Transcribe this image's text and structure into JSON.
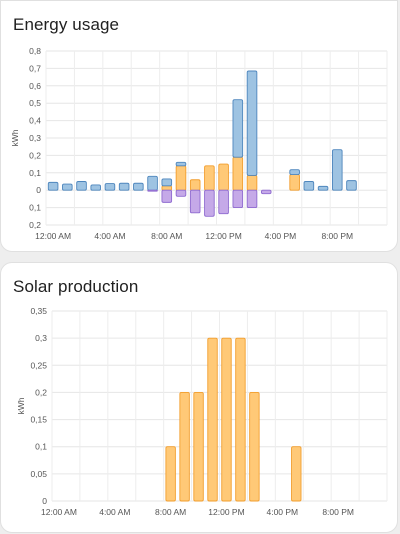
{
  "chart_data": [
    {
      "type": "bar",
      "title": "Energy usage",
      "ylabel": "kWh",
      "stacked": true,
      "grid": true,
      "ylim": [
        -0.2,
        0.8
      ],
      "yticks": [
        -0.2,
        -0.1,
        0,
        0.1,
        0.2,
        0.3,
        0.4,
        0.5,
        0.6,
        0.7,
        0.8
      ],
      "ytick_labels": [
        "0,2",
        "0,1",
        "0",
        "0,1",
        "0,2",
        "0,3",
        "0,4",
        "0,5",
        "0,6",
        "0,7",
        "0,8"
      ],
      "xtick_labels": [
        "12:00 AM",
        "4:00 AM",
        "8:00 AM",
        "12:00 PM",
        "4:00 PM",
        "8:00 PM"
      ],
      "hours": 24,
      "series": [
        {
          "key": "grid",
          "color": "#9ec3e2",
          "stroke": "#4e86bd",
          "values": [
            0.045,
            0.035,
            0.05,
            0.03,
            0.038,
            0.04,
            0.04,
            0.08,
            0.04,
            0.02,
            0,
            0,
            0,
            0.33,
            0.6,
            0,
            0,
            0.028,
            0.05,
            0.022,
            0.233,
            0.055,
            0,
            0
          ]
        },
        {
          "key": "solar",
          "color": "#ffc977",
          "stroke": "#f29e2e",
          "values": [
            0,
            0,
            0,
            0,
            0,
            0,
            0,
            0,
            0.025,
            0.14,
            0.06,
            0.14,
            0.15,
            0.19,
            0.085,
            0,
            0,
            0.09,
            0,
            0,
            0,
            0,
            0,
            0
          ]
        },
        {
          "key": "return",
          "color": "#c5a9e8",
          "stroke": "#8f6bd0",
          "values": [
            0,
            0,
            0,
            0,
            0,
            0,
            0,
            -0.005,
            -0.07,
            -0.035,
            -0.13,
            -0.15,
            -0.135,
            -0.1,
            -0.1,
            -0.02,
            0,
            0,
            0,
            0,
            0,
            0,
            0,
            0
          ]
        }
      ]
    },
    {
      "type": "bar",
      "title": "Solar production",
      "ylabel": "kWh",
      "grid": true,
      "ylim": [
        0,
        0.35
      ],
      "yticks": [
        0,
        0.05,
        0.1,
        0.15,
        0.2,
        0.25,
        0.3,
        0.35
      ],
      "ytick_labels": [
        "0",
        "0,05",
        "0,1",
        "0,15",
        "0,2",
        "0,25",
        "0,3",
        "0,35"
      ],
      "xtick_labels": [
        "12:00 AM",
        "4:00 AM",
        "8:00 AM",
        "12:00 PM",
        "4:00 PM",
        "8:00 PM"
      ],
      "hours": 24,
      "series": [
        {
          "key": "solar",
          "color": "#ffc977",
          "stroke": "#f29e2e",
          "values": [
            0,
            0,
            0,
            0,
            0,
            0,
            0,
            0,
            0.1,
            0.2,
            0.2,
            0.3,
            0.3,
            0.3,
            0.2,
            0,
            0,
            0.1,
            0,
            0,
            0,
            0,
            0,
            0
          ]
        }
      ]
    }
  ]
}
